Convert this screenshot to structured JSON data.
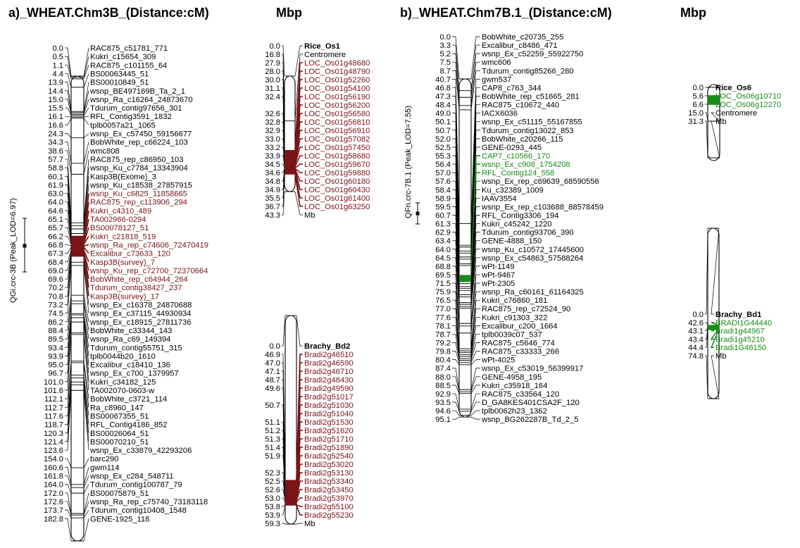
{
  "colors": {
    "black": "#000000",
    "red": "#7b1416",
    "green": "#1a8c1a"
  },
  "panel_a": {
    "title": "a)_WHEAT.Chm3B_(Distance:cM)",
    "mbp_title": "Mbp",
    "qtl_label": "QGi.crc-3B (Peak_LOD=6.97)",
    "markers": [
      {
        "pos": "0.0",
        "name": "RAC875_c51781_771",
        "hl": false
      },
      {
        "pos": "0.5",
        "name": "Kukri_c15654_309",
        "hl": false
      },
      {
        "pos": "1.1",
        "name": "RAC875_c101155_64",
        "hl": false
      },
      {
        "pos": "4.4",
        "name": "BS00063445_51",
        "hl": false
      },
      {
        "pos": "13.9",
        "name": "BS00010849_51",
        "hl": false
      },
      {
        "pos": "14.4",
        "name": "wsnp_BE497169B_Ta_2_1",
        "hl": false
      },
      {
        "pos": "15.0",
        "name": "wsnp_Ra_c16264_24873670",
        "hl": false
      },
      {
        "pos": "15.5",
        "name": "Tdurum_contig97656_301",
        "hl": false
      },
      {
        "pos": "16.1",
        "name": "RFL_Contig3591_1832",
        "hl": false
      },
      {
        "pos": "16.6",
        "name": "tplb0057a21_1065",
        "hl": false
      },
      {
        "pos": "24.3",
        "name": "wsnp_Ex_c57450_59156677",
        "hl": false
      },
      {
        "pos": "34.3",
        "name": "BobWhite_rep_c66224_103",
        "hl": false
      },
      {
        "pos": "38.6",
        "name": "wmc808",
        "hl": false
      },
      {
        "pos": "57.7",
        "name": "RAC875_rep_c86950_103",
        "hl": false
      },
      {
        "pos": "58.8",
        "name": "wsnp_Ku_c7784_13343904",
        "hl": false
      },
      {
        "pos": "60.1",
        "name": "Kasp3B(Exome)_3",
        "hl": false
      },
      {
        "pos": "61.9",
        "name": "wsnp_Ku_c18538_27857915",
        "hl": false
      },
      {
        "pos": "63.0",
        "name": "wsnp_Ku_c6825_11858665",
        "hl": true
      },
      {
        "pos": "64.0",
        "name": "RAC875_rep_c113906_294",
        "hl": true
      },
      {
        "pos": "64.6",
        "name": "Kukri_c4310_489",
        "hl": true
      },
      {
        "pos": "65.1",
        "name": "TA002966-0294",
        "hl": true
      },
      {
        "pos": "65.7",
        "name": "BS00078127_51",
        "hl": true
      },
      {
        "pos": "66.2",
        "name": "Kukri_c21818_519",
        "hl": true
      },
      {
        "pos": "66.8",
        "name": "wsnp_Ra_rep_c74606_72470419",
        "hl": true
      },
      {
        "pos": "67.3",
        "name": "Excalibur_c73633_120",
        "hl": true
      },
      {
        "pos": "68.4",
        "name": "Kasp3B(survey)_7",
        "hl": true
      },
      {
        "pos": "69.0",
        "name": "wsnp_Ku_rep_c72700_72370664",
        "hl": true
      },
      {
        "pos": "69.6",
        "name": "BobWhite_rep_c64944_264",
        "hl": true
      },
      {
        "pos": "70.2",
        "name": "Tdurum_contig38427_237",
        "hl": true
      },
      {
        "pos": "70.8",
        "name": "Kasp3B(survey)_17",
        "hl": true
      },
      {
        "pos": "73.2",
        "name": "wsnp_Ex_c16378_24870688",
        "hl": false
      },
      {
        "pos": "74.5",
        "name": "wsnp_Ex_c37115_44930934",
        "hl": false
      },
      {
        "pos": "86.2",
        "name": "wsnp_Ex_c18915_27811736",
        "hl": false
      },
      {
        "pos": "88.4",
        "name": "BobWhite_c33344_143",
        "hl": false
      },
      {
        "pos": "89.5",
        "name": "wsnp_Ra_c69_149394",
        "hl": false
      },
      {
        "pos": "93.4",
        "name": "Tdurum_contig55751_315",
        "hl": false
      },
      {
        "pos": "93.9",
        "name": "tplb0044b20_1610",
        "hl": false
      },
      {
        "pos": "95.0",
        "name": "Excalibur_c18410_136",
        "hl": false
      },
      {
        "pos": "96.7",
        "name": "wsnp_Ex_c700_1379957",
        "hl": false
      },
      {
        "pos": "101.0",
        "name": "Kukri_c34182_125",
        "hl": false
      },
      {
        "pos": "101.6",
        "name": "TA002070-0603-w",
        "hl": false
      },
      {
        "pos": "112.1",
        "name": "BobWhite_c3721_114",
        "hl": false
      },
      {
        "pos": "112.7",
        "name": "Ra_c8960_147",
        "hl": false
      },
      {
        "pos": "117.6",
        "name": "BS00067355_51",
        "hl": false
      },
      {
        "pos": "118.7",
        "name": "RFL_Contig4186_852",
        "hl": false
      },
      {
        "pos": "120.3",
        "name": "BS00026064_51",
        "hl": false
      },
      {
        "pos": "121.4",
        "name": "BS00070210_51",
        "hl": false
      },
      {
        "pos": "123.6",
        "name": "wsnp_Ex_c33879_42293206",
        "hl": false
      },
      {
        "pos": "154.0",
        "name": "barc290",
        "hl": false
      },
      {
        "pos": "160.6",
        "name": "gwm114",
        "hl": false
      },
      {
        "pos": "161.8",
        "name": "wsnp_Ex_c284_548711",
        "hl": false
      },
      {
        "pos": "164.0",
        "name": "Tdurum_contig100787_79",
        "hl": false
      },
      {
        "pos": "172.0",
        "name": "BS00075879_51",
        "hl": false
      },
      {
        "pos": "172.6",
        "name": "wsnp_Ra_rep_c75740_73183118",
        "hl": false
      },
      {
        "pos": "173.7",
        "name": "Tdurum_contig10408_1548",
        "hl": false
      },
      {
        "pos": "182.8",
        "name": "GENE-1925_118",
        "hl": false
      }
    ],
    "rice": [
      {
        "pos": "0.0",
        "name": "Rice_Os1",
        "hl": false,
        "bold": true
      },
      {
        "pos": "16.8",
        "name": "Centromere",
        "hl": false
      },
      {
        "pos": "27.9",
        "name": "LOC_Os01g48680",
        "hl": true
      },
      {
        "pos": "28.0",
        "name": "LOC_Os01g48790",
        "hl": true
      },
      {
        "pos": "30.0",
        "name": "LOC_Os01g52260",
        "hl": true
      },
      {
        "pos": "31.1",
        "name": "LOC_Os01g54100",
        "hl": true
      },
      {
        "pos": "32.4",
        "name": "LOC_Os01g56190",
        "hl": true
      },
      {
        "pos": "",
        "name": "LOC_Os01g56200",
        "hl": true
      },
      {
        "pos": "32.6",
        "name": "LOC_Os01g56580",
        "hl": true
      },
      {
        "pos": "32.8",
        "name": "LOC_Os01g56810",
        "hl": true
      },
      {
        "pos": "32.9",
        "name": "LOC_Os01g56910",
        "hl": true
      },
      {
        "pos": "33.0",
        "name": "LOC_Os01g57082",
        "hl": true
      },
      {
        "pos": "33.2",
        "name": "LOC_Os01g57450",
        "hl": true
      },
      {
        "pos": "33.9",
        "name": "LOC_Os01g58680",
        "hl": true
      },
      {
        "pos": "34.5",
        "name": "LOC_Os01g59670",
        "hl": true
      },
      {
        "pos": "34.6",
        "name": "LOC_Os01g59880",
        "hl": true
      },
      {
        "pos": "34.8",
        "name": "LOC_Os01g60180",
        "hl": true
      },
      {
        "pos": "34.9",
        "name": "LOC_Os01g60430",
        "hl": true
      },
      {
        "pos": "35.5",
        "name": "LOC_Os01g61400",
        "hl": true
      },
      {
        "pos": "36.7",
        "name": "LOC_Os01g63250",
        "hl": true
      },
      {
        "pos": "43.3",
        "name": "Mb",
        "hl": false
      }
    ],
    "brachy": [
      {
        "pos": "0.0",
        "name": "Brachy_Bd2",
        "hl": false,
        "bold": true
      },
      {
        "pos": "46.9",
        "name": "Bradi2g46510",
        "hl": true
      },
      {
        "pos": "47.0",
        "name": "Bradi2g46590",
        "hl": true
      },
      {
        "pos": "47.1",
        "name": "Bradi2g46710",
        "hl": true
      },
      {
        "pos": "48.7",
        "name": "Bradi2g48430",
        "hl": true
      },
      {
        "pos": "49.6",
        "name": "Bradi2g49590",
        "hl": true
      },
      {
        "pos": "",
        "name": "Bradi2g51017",
        "hl": true
      },
      {
        "pos": "50.7",
        "name": "Bradi2g51030",
        "hl": true
      },
      {
        "pos": "",
        "name": "Bradi2g51040",
        "hl": true
      },
      {
        "pos": "51.1",
        "name": "Bradi2g51530",
        "hl": true
      },
      {
        "pos": "51.2",
        "name": "Bradi2g51620",
        "hl": true
      },
      {
        "pos": "51.3",
        "name": "Bradi2g51710",
        "hl": true
      },
      {
        "pos": "51.4",
        "name": "Bradi2g51890",
        "hl": true
      },
      {
        "pos": "51.9",
        "name": "Bradi2g52540",
        "hl": true
      },
      {
        "pos": "",
        "name": "Bradi2g53020",
        "hl": true
      },
      {
        "pos": "52.3",
        "name": "Bradi2g53130",
        "hl": true
      },
      {
        "pos": "52.5",
        "name": "Bradi2g53340",
        "hl": true
      },
      {
        "pos": "52.6",
        "name": "Bradi2g53450",
        "hl": true
      },
      {
        "pos": "53.0",
        "name": "Bradi2g53970",
        "hl": true
      },
      {
        "pos": "53.8",
        "name": "Bradi2g55100",
        "hl": true
      },
      {
        "pos": "53.9",
        "name": "Bradi2g55230",
        "hl": true
      },
      {
        "pos": "59.3",
        "name": "Mb",
        "hl": false
      }
    ]
  },
  "panel_b": {
    "title": "b)_WHEAT.Chm7B.1_(Distance:cM)",
    "mbp_title": "Mbp",
    "qtl_label": "QFn.crc-7B.1 (Peak_LOD=7.55)",
    "markers": [
      {
        "pos": "0.0",
        "name": "BobWhite_c20735_255",
        "hl": false
      },
      {
        "pos": "3.3",
        "name": "Excalibur_c8486_471",
        "hl": false
      },
      {
        "pos": "5.2",
        "name": "wsnp_Ex_c52259_55922750",
        "hl": false
      },
      {
        "pos": "7.5",
        "name": "wmc606",
        "hl": false
      },
      {
        "pos": "8.7",
        "name": "Tdurum_contig85266_280",
        "hl": false
      },
      {
        "pos": "40.7",
        "name": "gwm537",
        "hl": false
      },
      {
        "pos": "46.8",
        "name": "CAP8_c763_344",
        "hl": false
      },
      {
        "pos": "47.3",
        "name": "BobWhite_rep_c51665_281",
        "hl": false
      },
      {
        "pos": "48.4",
        "name": "RAC875_c10672_440",
        "hl": false
      },
      {
        "pos": "49.0",
        "name": "IACX6036",
        "hl": false
      },
      {
        "pos": "50.1",
        "name": "wsnp_Ex_c51115_55167855",
        "hl": false
      },
      {
        "pos": "50.7",
        "name": "Tdurum_contig13022_853",
        "hl": false
      },
      {
        "pos": "52.0",
        "name": "BobWhite_c20266_115",
        "hl": false
      },
      {
        "pos": "52.5",
        "name": "GENE-0293_445",
        "hl": false
      },
      {
        "pos": "55.3",
        "name": "CAP7_c10566_170",
        "hl": true
      },
      {
        "pos": "56.4",
        "name": "wsnp_Ex_c908_1754208",
        "hl": true
      },
      {
        "pos": "57.0",
        "name": "RFL_Contig124_558",
        "hl": true
      },
      {
        "pos": "57.6",
        "name": "wsnp_Ex_rep_c69639_68590556",
        "hl": false
      },
      {
        "pos": "58.4",
        "name": "Ku_c32389_1009",
        "hl": false
      },
      {
        "pos": "58.9",
        "name": "IAAV3554",
        "hl": false
      },
      {
        "pos": "59.5",
        "name": "wsnp_Ex_rep_c103688_88578459",
        "hl": false
      },
      {
        "pos": "60.7",
        "name": "RFL_Contig3306_194",
        "hl": false
      },
      {
        "pos": "61.3",
        "name": "Kukri_c45242_1220",
        "hl": false
      },
      {
        "pos": "62.9",
        "name": "Tdurum_contig93706_390",
        "hl": false
      },
      {
        "pos": "63.4",
        "name": "GENE-4888_150",
        "hl": false
      },
      {
        "pos": "64.0",
        "name": "wsnp_Ku_c10572_17445600",
        "hl": false
      },
      {
        "pos": "64.5",
        "name": "wsnp_Ex_c54863_57588264",
        "hl": false
      },
      {
        "pos": "68.8",
        "name": "wPt-1149",
        "hl": false
      },
      {
        "pos": "69.5",
        "name": "wPt-9467",
        "hl": false
      },
      {
        "pos": "71.5",
        "name": "wPt-2305",
        "hl": false
      },
      {
        "pos": "75.9",
        "name": "wsnp_Ra_c60161_61164325",
        "hl": false
      },
      {
        "pos": "76.5",
        "name": "Kukri_c76860_181",
        "hl": false
      },
      {
        "pos": "77.0",
        "name": "RAC875_rep_c72524_90",
        "hl": false
      },
      {
        "pos": "77.6",
        "name": "Kukri_c91303_322",
        "hl": false
      },
      {
        "pos": "78.1",
        "name": "Excalibur_c200_1664",
        "hl": false
      },
      {
        "pos": "78.7",
        "name": "tplb0039c07_537",
        "hl": false
      },
      {
        "pos": "79.2",
        "name": "RAC875_c5646_774",
        "hl": false
      },
      {
        "pos": "79.8",
        "name": "RAC875_c33333_266",
        "hl": false
      },
      {
        "pos": "80.4",
        "name": "wPt-4025",
        "hl": false
      },
      {
        "pos": "87.4",
        "name": "wsnp_Ex_c53019_56399917",
        "hl": false
      },
      {
        "pos": "88.0",
        "name": "GENE-4958_195",
        "hl": false
      },
      {
        "pos": "88.5",
        "name": "Kukri_c35918_164",
        "hl": false
      },
      {
        "pos": "92.9",
        "name": "RAC875_c33564_120",
        "hl": false
      },
      {
        "pos": "93.5",
        "name": "D_GA8KES401CSA2F_120",
        "hl": false
      },
      {
        "pos": "94.6",
        "name": "tplb0062h23_1362",
        "hl": false
      },
      {
        "pos": "95.1",
        "name": "wsnp_BG262287B_Td_2_5",
        "hl": false
      }
    ],
    "rice": [
      {
        "pos": "0.0",
        "name": "Rice_Os6",
        "hl": false,
        "bold": true
      },
      {
        "pos": "5.6",
        "name": "LOC_Os06g10710",
        "hl": true
      },
      {
        "pos": "6.6",
        "name": "LOC_Os06g12270",
        "hl": true
      },
      {
        "pos": "15.0",
        "name": "Centromere",
        "hl": false
      },
      {
        "pos": "31.3",
        "name": "Mb",
        "hl": false
      }
    ],
    "brachy": [
      {
        "pos": "0.0",
        "name": "Brachy_Bd1",
        "hl": false,
        "bold": true
      },
      {
        "pos": "42.6",
        "name": "BRADI1G44440",
        "hl": true
      },
      {
        "pos": "43.1",
        "name": "Bradi1g44967",
        "hl": true
      },
      {
        "pos": "43.4",
        "name": "Bradi1g45210",
        "hl": true
      },
      {
        "pos": "44.4",
        "name": "Bradi1G46150",
        "hl": true
      },
      {
        "pos": "74.8",
        "name": "Mb",
        "hl": false
      }
    ]
  }
}
